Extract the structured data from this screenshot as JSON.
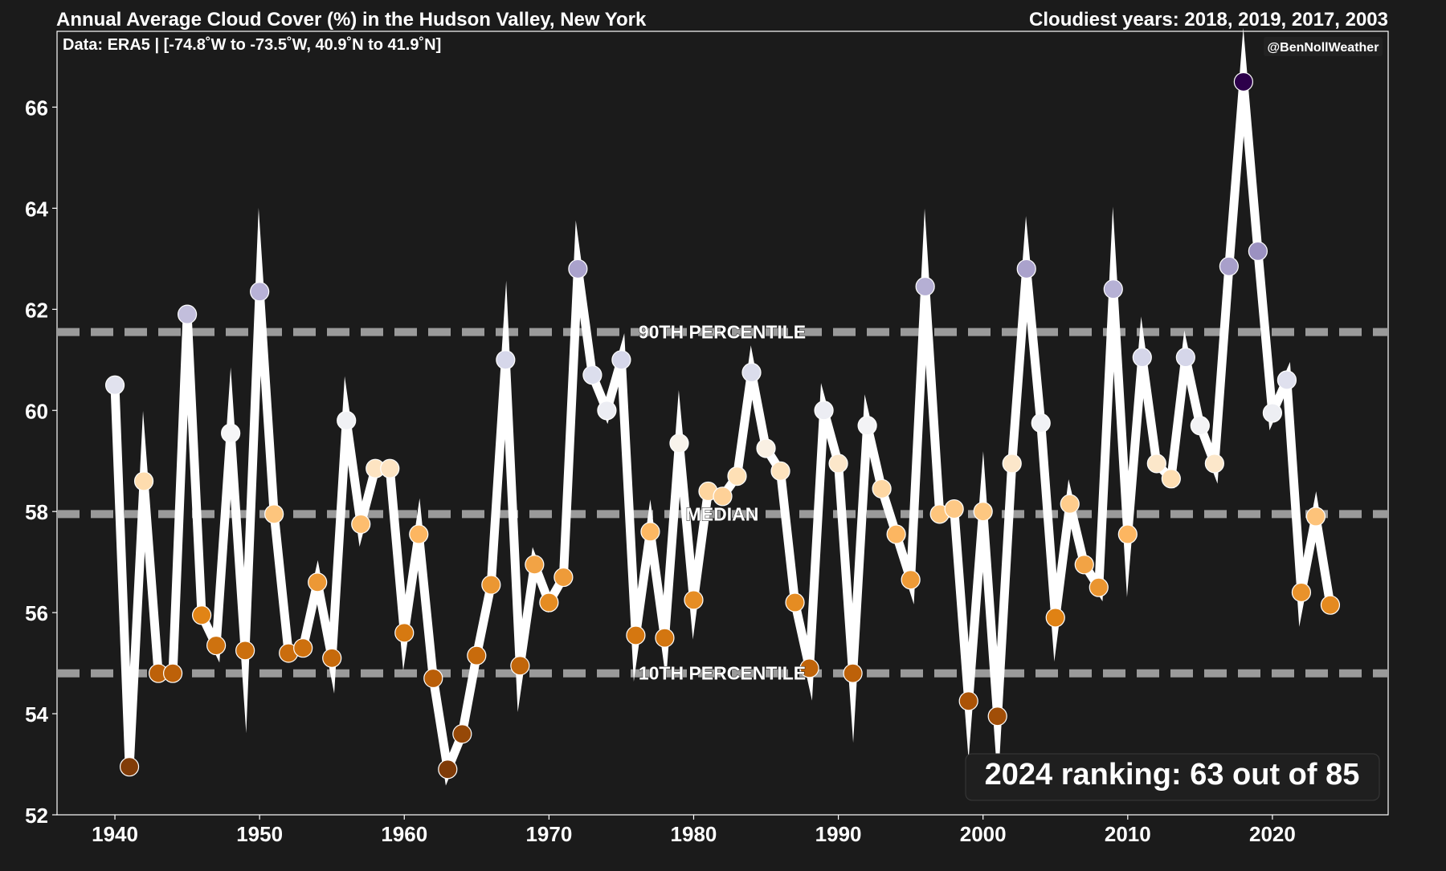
{
  "chart_data": {
    "type": "line",
    "title": "Annual Average Cloud Cover (%) in the Hudson Valley, New York",
    "subtitle_right": "Cloudiest years: 2018, 2019, 2017, 2003",
    "data_note": "Data: ERA5 | [-74.8˚W to -73.5˚W, 40.9˚N to 41.9˚N]",
    "credit": "@BenNollWeather",
    "ranking_text": "2024 ranking: 63 out of 85",
    "xlabel": "",
    "ylabel": "",
    "xlim": [
      1936,
      2028
    ],
    "ylim": [
      52,
      67.5
    ],
    "x_ticks": [
      1940,
      1950,
      1960,
      1970,
      1980,
      1990,
      2000,
      2010,
      2020
    ],
    "y_ticks": [
      52,
      54,
      56,
      58,
      60,
      62,
      64,
      66
    ],
    "grid": false,
    "reference_lines": [
      {
        "label": "90TH PERCENTILE",
        "value": 61.55
      },
      {
        "label": "MEDIAN",
        "value": 57.95
      },
      {
        "label": "10TH PERCENTILE",
        "value": 54.8
      }
    ],
    "colors": {
      "background": "#1b1b1b",
      "line": "#ffffff",
      "reference": "#9a9a9a",
      "text": "#ffffff",
      "ranking_box": "#1f1f1f"
    },
    "x": [
      1940,
      1941,
      1942,
      1943,
      1944,
      1945,
      1946,
      1947,
      1948,
      1949,
      1950,
      1951,
      1952,
      1953,
      1954,
      1955,
      1956,
      1957,
      1958,
      1959,
      1960,
      1961,
      1962,
      1963,
      1964,
      1965,
      1966,
      1967,
      1968,
      1969,
      1970,
      1971,
      1972,
      1973,
      1974,
      1975,
      1976,
      1977,
      1978,
      1979,
      1980,
      1981,
      1982,
      1983,
      1984,
      1985,
      1986,
      1987,
      1988,
      1989,
      1990,
      1991,
      1992,
      1993,
      1994,
      1995,
      1996,
      1997,
      1998,
      1999,
      2000,
      2001,
      2002,
      2003,
      2004,
      2005,
      2006,
      2007,
      2008,
      2009,
      2010,
      2011,
      2012,
      2013,
      2014,
      2015,
      2016,
      2017,
      2018,
      2019,
      2020,
      2021,
      2022,
      2023,
      2024
    ],
    "values": [
      60.5,
      52.95,
      58.6,
      54.8,
      54.8,
      61.9,
      55.95,
      55.35,
      59.55,
      55.25,
      62.35,
      57.95,
      55.2,
      55.3,
      56.6,
      55.1,
      59.8,
      57.75,
      58.85,
      58.85,
      55.6,
      57.55,
      54.7,
      52.9,
      53.6,
      55.15,
      56.55,
      61.0,
      54.95,
      56.95,
      56.2,
      56.7,
      62.8,
      60.7,
      60.0,
      61.0,
      55.55,
      57.6,
      55.5,
      59.35,
      56.25,
      58.4,
      58.3,
      58.7,
      60.75,
      59.25,
      58.8,
      56.2,
      54.9,
      60.0,
      58.95,
      54.8,
      59.7,
      58.45,
      57.55,
      56.65,
      62.45,
      57.95,
      58.05,
      54.25,
      58.0,
      53.95,
      58.95,
      62.8,
      59.75,
      55.9,
      58.15,
      56.95,
      56.5,
      62.4,
      57.55,
      61.05,
      58.95,
      58.65,
      61.05,
      59.7,
      58.95,
      62.85,
      66.5,
      63.15,
      59.95,
      60.6,
      56.4,
      57.9,
      56.15
    ]
  }
}
